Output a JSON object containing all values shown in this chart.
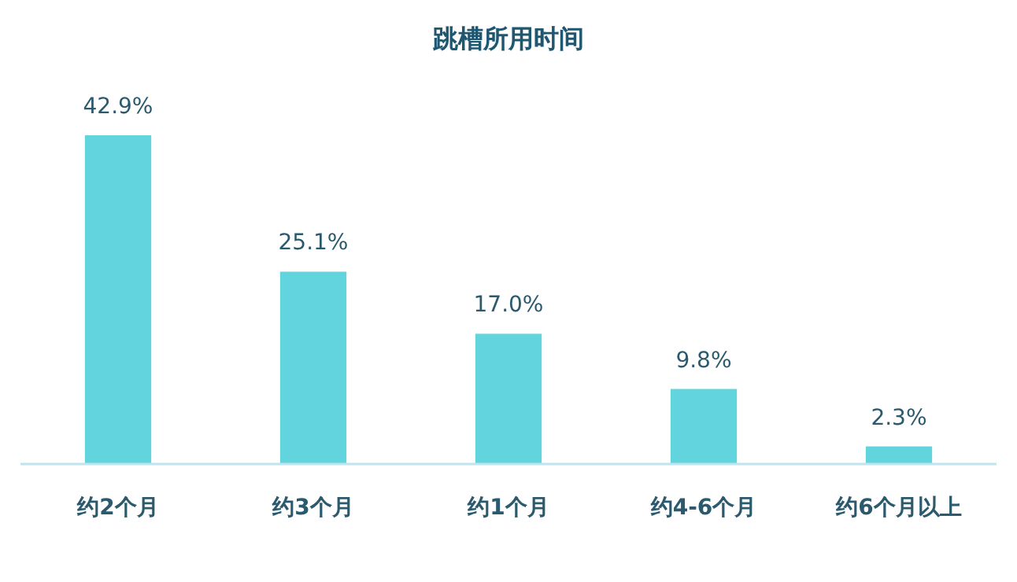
{
  "chart_data": {
    "type": "bar",
    "title": "跳槽所用时间",
    "categories": [
      "约2个月",
      "约3个月",
      "约1个月",
      "约4-6个月",
      "约6个月以上"
    ],
    "values": [
      42.9,
      25.1,
      17.0,
      9.8,
      2.3
    ],
    "value_labels": [
      "42.9%",
      "25.1%",
      "17.0%",
      "9.8%",
      "2.3%"
    ],
    "color": "#62d4dd"
  }
}
